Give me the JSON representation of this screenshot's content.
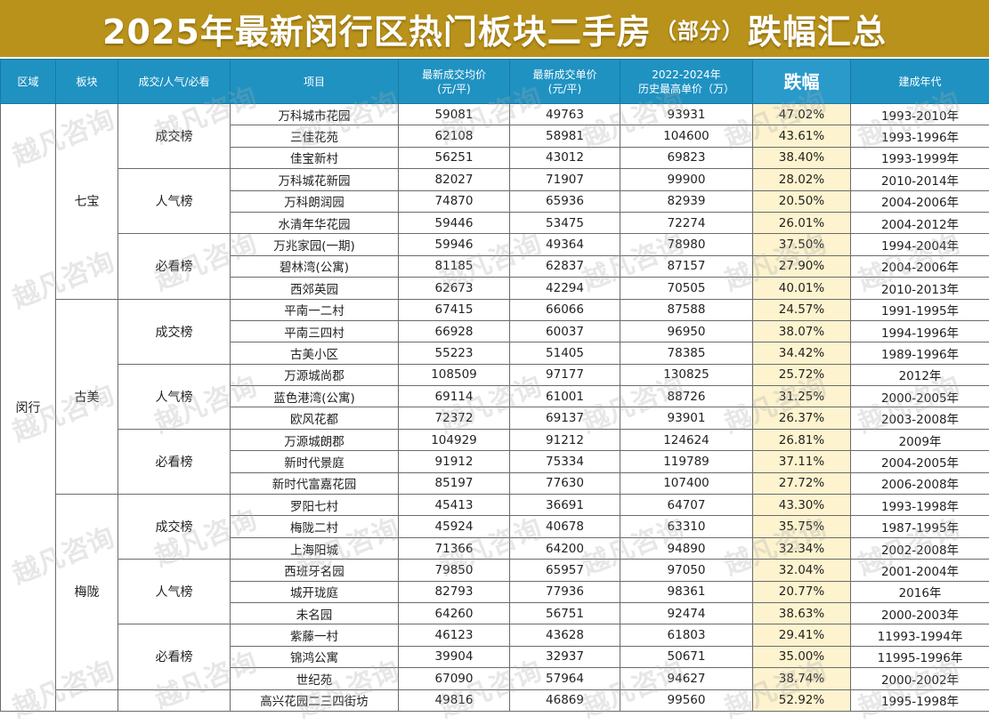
{
  "title": {
    "main": "2025年最新闵行区热门板块二手房",
    "sub": "（部分）",
    "end": "跌幅汇总"
  },
  "colors": {
    "title_bg": "#b8921a",
    "header_bg": "#1f92c2",
    "fluct_bg": "#fdf3cf"
  },
  "headers": {
    "district": "区域",
    "block": "板块",
    "category": "成交/人气/必看",
    "project": "项目",
    "avg_price": "最新成交均价\n(元/平)",
    "unit_price": "最新成交单价\n(元/平)",
    "hist_high": "2022-2024年\n历史最高单价（万）",
    "fluctuation": "跌幅",
    "built": "建成年代"
  },
  "watermark": "越凡咨询",
  "district": "闵行",
  "blocks": [
    {
      "name": "七宝",
      "groups": [
        {
          "cat": "成交榜",
          "rows": [
            {
              "project": "万科城市花园",
              "avg": "59081",
              "unit": "49763",
              "high": "93931",
              "drop": "47.02%",
              "built": "1993-2010年"
            },
            {
              "project": "三佳花苑",
              "avg": "62108",
              "unit": "58981",
              "high": "104600",
              "drop": "43.61%",
              "built": "1993-1996年"
            },
            {
              "project": "佳宝新村",
              "avg": "56251",
              "unit": "43012",
              "high": "69823",
              "drop": "38.40%",
              "built": "1993-1999年"
            }
          ]
        },
        {
          "cat": "人气榜",
          "rows": [
            {
              "project": "万科城花新园",
              "avg": "82027",
              "unit": "71907",
              "high": "99900",
              "drop": "28.02%",
              "built": "2010-2014年"
            },
            {
              "project": "万科朗润园",
              "avg": "74870",
              "unit": "65936",
              "high": "82939",
              "drop": "20.50%",
              "built": "2004-2006年"
            },
            {
              "project": "水清年华花园",
              "avg": "59446",
              "unit": "53475",
              "high": "72274",
              "drop": "26.01%",
              "built": "2004-2012年"
            }
          ]
        },
        {
          "cat": "必看榜",
          "rows": [
            {
              "project": "万兆家园(一期)",
              "avg": "59946",
              "unit": "49364",
              "high": "78980",
              "drop": "37.50%",
              "built": "1994-2004年"
            },
            {
              "project": "碧林湾(公寓)",
              "avg": "81185",
              "unit": "62837",
              "high": "87157",
              "drop": "27.90%",
              "built": "2004-2006年"
            },
            {
              "project": "西郊英园",
              "avg": "62673",
              "unit": "42294",
              "high": "70505",
              "drop": "40.01%",
              "built": "2010-2013年"
            }
          ]
        }
      ]
    },
    {
      "name": "古美",
      "groups": [
        {
          "cat": "成交榜",
          "rows": [
            {
              "project": "平南一二村",
              "avg": "67415",
              "unit": "66066",
              "high": "87588",
              "drop": "24.57%",
              "built": "1991-1995年"
            },
            {
              "project": "平南三四村",
              "avg": "66928",
              "unit": "60037",
              "high": "96950",
              "drop": "38.07%",
              "built": "1994-1996年"
            },
            {
              "project": "古美小区",
              "avg": "55223",
              "unit": "51405",
              "high": "78385",
              "drop": "34.42%",
              "built": "1989-1996年"
            }
          ]
        },
        {
          "cat": "人气榜",
          "rows": [
            {
              "project": "万源城尚郡",
              "avg": "108509",
              "unit": "97177",
              "high": "130825",
              "drop": "25.72%",
              "built": "2012年"
            },
            {
              "project": "蓝色港湾(公寓)",
              "avg": "69114",
              "unit": "61001",
              "high": "88726",
              "drop": "31.25%",
              "built": "2000-2005年"
            },
            {
              "project": "欧风花都",
              "avg": "72372",
              "unit": "69137",
              "high": "93901",
              "drop": "26.37%",
              "built": "2003-2008年"
            }
          ]
        },
        {
          "cat": "必看榜",
          "rows": [
            {
              "project": "万源城朗郡",
              "avg": "104929",
              "unit": "91212",
              "high": "124624",
              "drop": "26.81%",
              "built": "2009年"
            },
            {
              "project": "新时代景庭",
              "avg": "91912",
              "unit": "75334",
              "high": "119789",
              "drop": "37.11%",
              "built": "2004-2005年"
            },
            {
              "project": "新时代富嘉花园",
              "avg": "85197",
              "unit": "77630",
              "high": "107400",
              "drop": "27.72%",
              "built": "2006-2008年"
            }
          ]
        }
      ]
    },
    {
      "name": "梅陇",
      "groups": [
        {
          "cat": "成交榜",
          "rows": [
            {
              "project": "罗阳七村",
              "avg": "45413",
              "unit": "36691",
              "high": "64707",
              "drop": "43.30%",
              "built": "1993-1998年"
            },
            {
              "project": "梅陇二村",
              "avg": "45924",
              "unit": "40678",
              "high": "63310",
              "drop": "35.75%",
              "built": "1987-1995年"
            },
            {
              "project": "上海阳城",
              "avg": "71366",
              "unit": "64200",
              "high": "94890",
              "drop": "32.34%",
              "built": "2002-2008年"
            }
          ]
        },
        {
          "cat": "人气榜",
          "rows": [
            {
              "project": "西班牙名园",
              "avg": "79850",
              "unit": "65957",
              "high": "97050",
              "drop": "32.04%",
              "built": "2001-2004年"
            },
            {
              "project": "城开珑庭",
              "avg": "82793",
              "unit": "77936",
              "high": "98361",
              "drop": "20.77%",
              "built": "2016年"
            },
            {
              "project": "未名园",
              "avg": "64260",
              "unit": "56751",
              "high": "92474",
              "drop": "38.63%",
              "built": "2000-2003年"
            }
          ]
        },
        {
          "cat": "必看榜",
          "rows": [
            {
              "project": "紫藤一村",
              "avg": "46123",
              "unit": "43628",
              "high": "61803",
              "drop": "29.41%",
              "built": "11993-1994年"
            },
            {
              "project": "锦鸿公寓",
              "avg": "39904",
              "unit": "32937",
              "high": "50671",
              "drop": "35.00%",
              "built": "11995-1996年"
            },
            {
              "project": "世纪苑",
              "avg": "67090",
              "unit": "57964",
              "high": "94627",
              "drop": "38.74%",
              "built": "2000-2002年"
            }
          ]
        }
      ]
    },
    {
      "name": "",
      "groups": [
        {
          "cat": "",
          "rows": [
            {
              "project": "高兴花园二三四街坊",
              "avg": "49816",
              "unit": "46869",
              "high": "99560",
              "drop": "52.92%",
              "built": "1995-1998年"
            }
          ]
        }
      ]
    }
  ]
}
